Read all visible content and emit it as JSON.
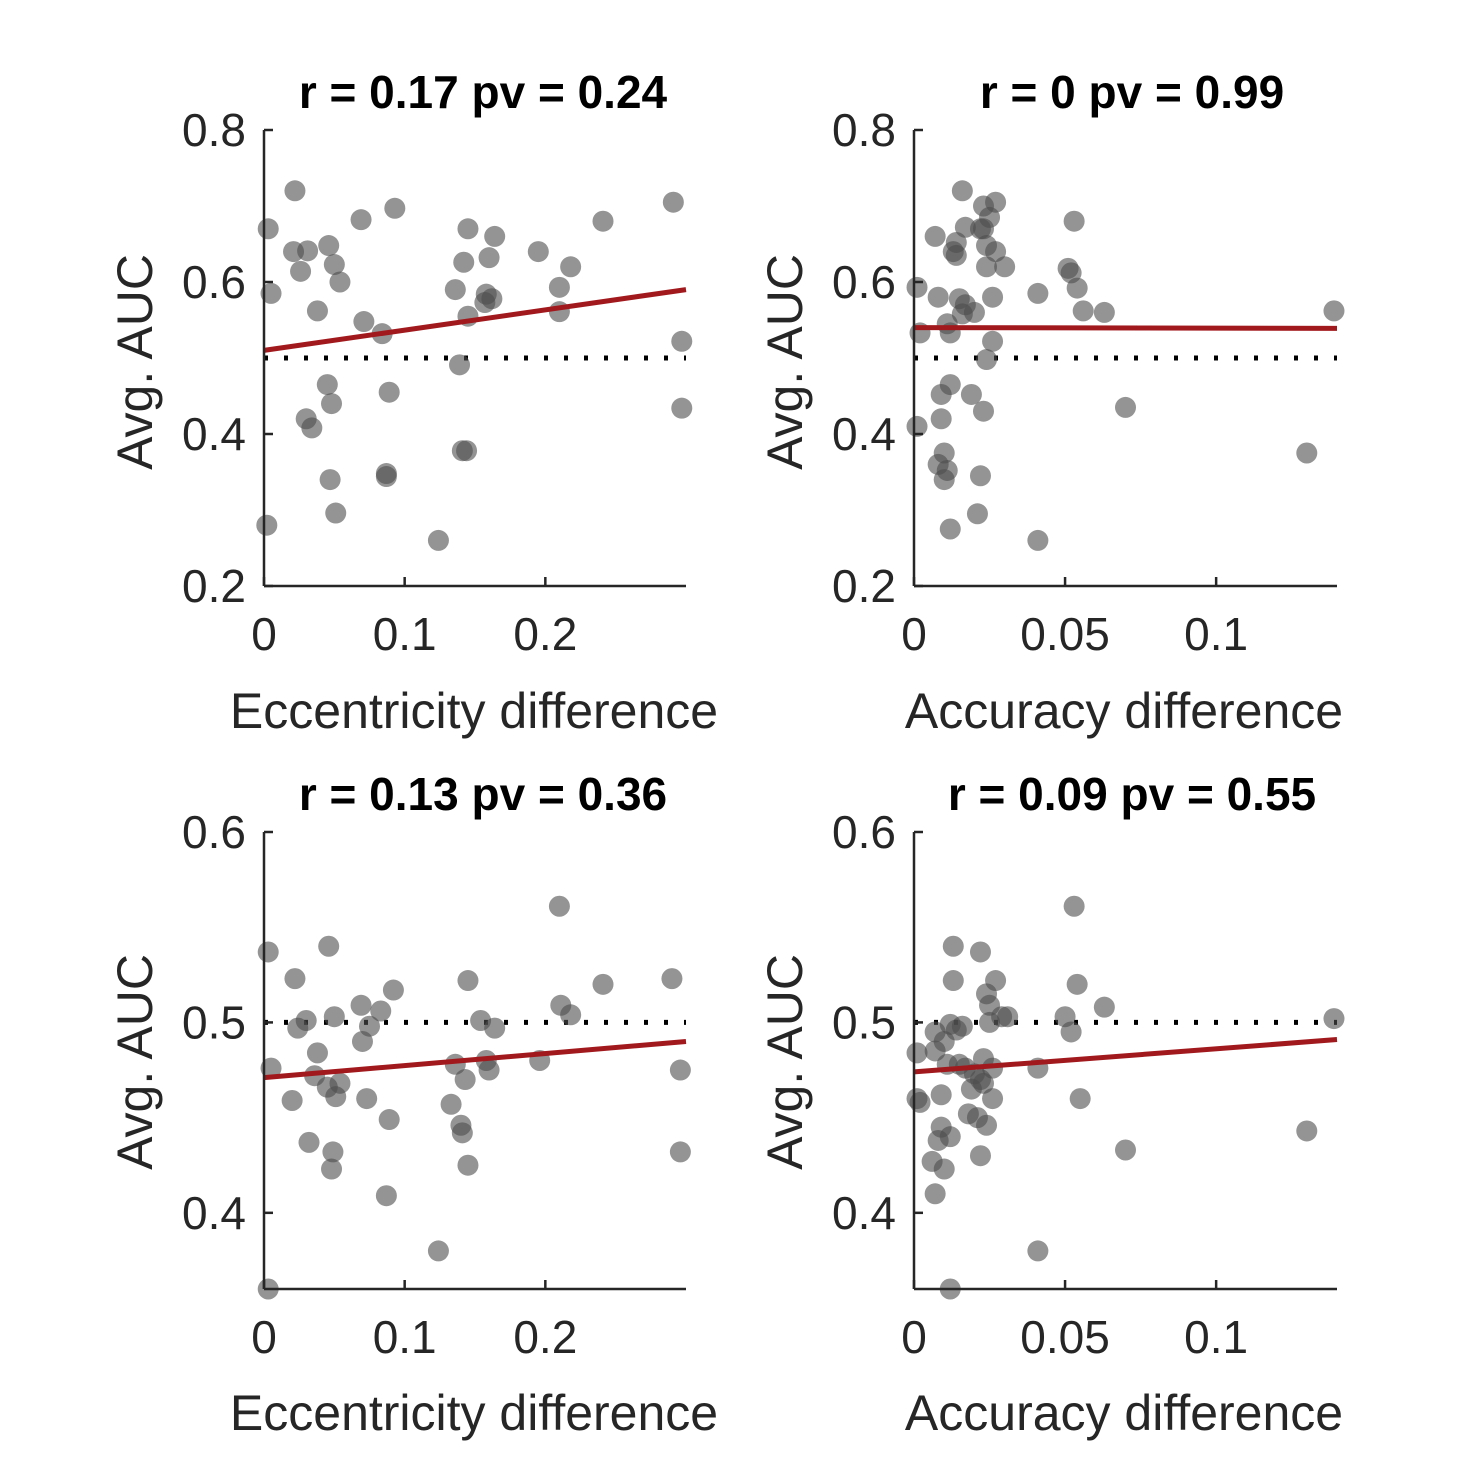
{
  "colors": {
    "points": "#4d4d4d",
    "fit": "#a2191d",
    "axis": "#262626",
    "reference": "#000000"
  },
  "chart_data": [
    {
      "type": "scatter",
      "title": "r = 0.17 pv = 0.24",
      "xlabel": "Eccentricity difference",
      "ylabel": "Avg. AUC",
      "xlim": [
        0,
        0.3
      ],
      "ylim": [
        0.2,
        0.8
      ],
      "xticks": [
        "0",
        "0.1",
        "0.2"
      ],
      "xtick_values": [
        0,
        0.1,
        0.2
      ],
      "yticks": [
        "0.2",
        "0.4",
        "0.6",
        "0.8"
      ],
      "ytick_values": [
        0.2,
        0.4,
        0.6,
        0.8
      ],
      "reference_line": {
        "y": 0.5,
        "style": "dotted"
      },
      "fit_line": {
        "x": [
          0,
          0.3
        ],
        "y": [
          0.51,
          0.59
        ]
      },
      "x": [
        0.003,
        0.005,
        0.002,
        0.022,
        0.021,
        0.026,
        0.031,
        0.038,
        0.03,
        0.034,
        0.046,
        0.05,
        0.054,
        0.045,
        0.048,
        0.047,
        0.051,
        0.069,
        0.071,
        0.084,
        0.093,
        0.089,
        0.087,
        0.087,
        0.124,
        0.136,
        0.142,
        0.145,
        0.144,
        0.141,
        0.145,
        0.139,
        0.16,
        0.164,
        0.162,
        0.158,
        0.157,
        0.195,
        0.21,
        0.21,
        0.218,
        0.241,
        0.291,
        0.297,
        0.297
      ],
      "y": [
        0.67,
        0.585,
        0.28,
        0.72,
        0.64,
        0.614,
        0.641,
        0.562,
        0.42,
        0.408,
        0.648,
        0.623,
        0.6,
        0.465,
        0.44,
        0.34,
        0.296,
        0.682,
        0.548,
        0.532,
        0.697,
        0.455,
        0.348,
        0.344,
        0.26,
        0.59,
        0.626,
        0.67,
        0.378,
        0.378,
        0.555,
        0.491,
        0.632,
        0.66,
        0.578,
        0.584,
        0.573,
        0.64,
        0.593,
        0.561,
        0.62,
        0.68,
        0.705,
        0.522,
        0.434
      ]
    },
    {
      "type": "scatter",
      "title": "r = 0 pv = 0.99",
      "xlabel": "Accuracy difference",
      "ylabel": "Avg. AUC",
      "xlim": [
        0,
        0.14
      ],
      "ylim": [
        0.2,
        0.8
      ],
      "xticks": [
        "0",
        "0.05",
        "0.1"
      ],
      "xtick_values": [
        0,
        0.05,
        0.1
      ],
      "yticks": [
        "0.2",
        "0.4",
        "0.6",
        "0.8"
      ],
      "ytick_values": [
        0.2,
        0.4,
        0.6,
        0.8
      ],
      "reference_line": {
        "y": 0.5,
        "style": "dotted"
      },
      "fit_line": {
        "x": [
          0,
          0.14
        ],
        "y": [
          0.54,
          0.539
        ]
      },
      "x": [
        0.001,
        0.002,
        0.001,
        0.007,
        0.008,
        0.009,
        0.01,
        0.011,
        0.01,
        0.012,
        0.011,
        0.012,
        0.013,
        0.014,
        0.014,
        0.016,
        0.017,
        0.015,
        0.017,
        0.019,
        0.02,
        0.022,
        0.023,
        0.024,
        0.024,
        0.023,
        0.025,
        0.026,
        0.022,
        0.021,
        0.024,
        0.026,
        0.027,
        0.027,
        0.03,
        0.023,
        0.016,
        0.012,
        0.009,
        0.008,
        0.041,
        0.041,
        0.051,
        0.052,
        0.054,
        0.053,
        0.056,
        0.063,
        0.07,
        0.13,
        0.139
      ],
      "y": [
        0.41,
        0.533,
        0.593,
        0.66,
        0.58,
        0.42,
        0.375,
        0.352,
        0.34,
        0.465,
        0.545,
        0.533,
        0.64,
        0.635,
        0.652,
        0.72,
        0.672,
        0.578,
        0.57,
        0.452,
        0.56,
        0.67,
        0.7,
        0.648,
        0.62,
        0.43,
        0.685,
        0.58,
        0.345,
        0.295,
        0.498,
        0.522,
        0.64,
        0.705,
        0.62,
        0.67,
        0.558,
        0.275,
        0.452,
        0.36,
        0.585,
        0.26,
        0.618,
        0.612,
        0.592,
        0.68,
        0.562,
        0.56,
        0.435,
        0.375,
        0.562
      ]
    },
    {
      "type": "scatter",
      "title": "r = 0.13 pv = 0.36",
      "xlabel": "Eccentricity difference",
      "ylabel": "Avg. AUC",
      "xlim": [
        0,
        0.3
      ],
      "ylim": [
        0.36,
        0.6
      ],
      "xticks": [
        "0",
        "0.1",
        "0.2"
      ],
      "xtick_values": [
        0,
        0.1,
        0.2
      ],
      "yticks": [
        "0.4",
        "0.5",
        "0.6"
      ],
      "ytick_values": [
        0.4,
        0.5,
        0.6
      ],
      "reference_line": {
        "y": 0.5,
        "style": "dotted"
      },
      "fit_line": {
        "x": [
          0,
          0.3
        ],
        "y": [
          0.471,
          0.49
        ]
      },
      "x": [
        0.003,
        0.005,
        0.003,
        0.022,
        0.02,
        0.024,
        0.03,
        0.032,
        0.038,
        0.036,
        0.046,
        0.05,
        0.054,
        0.045,
        0.048,
        0.049,
        0.051,
        0.069,
        0.07,
        0.075,
        0.073,
        0.083,
        0.089,
        0.092,
        0.087,
        0.124,
        0.133,
        0.136,
        0.14,
        0.145,
        0.143,
        0.141,
        0.145,
        0.154,
        0.16,
        0.164,
        0.158,
        0.196,
        0.21,
        0.211,
        0.218,
        0.241,
        0.29,
        0.296,
        0.296
      ],
      "y": [
        0.537,
        0.476,
        0.36,
        0.523,
        0.459,
        0.497,
        0.501,
        0.437,
        0.484,
        0.472,
        0.54,
        0.503,
        0.468,
        0.466,
        0.423,
        0.432,
        0.461,
        0.509,
        0.49,
        0.498,
        0.46,
        0.506,
        0.449,
        0.517,
        0.409,
        0.38,
        0.457,
        0.478,
        0.446,
        0.522,
        0.47,
        0.442,
        0.425,
        0.501,
        0.475,
        0.497,
        0.48,
        0.48,
        0.561,
        0.509,
        0.504,
        0.52,
        0.523,
        0.475,
        0.432
      ]
    },
    {
      "type": "scatter",
      "title": "r = 0.09 pv = 0.55",
      "xlabel": "Accuracy difference",
      "ylabel": "Avg. AUC",
      "xlim": [
        0,
        0.14
      ],
      "ylim": [
        0.36,
        0.6
      ],
      "xticks": [
        "0",
        "0.05",
        "0.1"
      ],
      "xtick_values": [
        0,
        0.05,
        0.1
      ],
      "yticks": [
        "0.4",
        "0.5",
        "0.6"
      ],
      "ytick_values": [
        0.4,
        0.5,
        0.6
      ],
      "reference_line": {
        "y": 0.5,
        "style": "dotted"
      },
      "fit_line": {
        "x": [
          0,
          0.14
        ],
        "y": [
          0.474,
          0.491
        ]
      },
      "x": [
        0.001,
        0.001,
        0.002,
        0.007,
        0.007,
        0.008,
        0.006,
        0.007,
        0.009,
        0.01,
        0.01,
        0.011,
        0.012,
        0.012,
        0.013,
        0.013,
        0.014,
        0.015,
        0.016,
        0.017,
        0.018,
        0.019,
        0.021,
        0.022,
        0.022,
        0.023,
        0.023,
        0.024,
        0.024,
        0.025,
        0.025,
        0.026,
        0.026,
        0.027,
        0.029,
        0.022,
        0.02,
        0.031,
        0.041,
        0.041,
        0.05,
        0.052,
        0.053,
        0.054,
        0.055,
        0.063,
        0.07,
        0.13,
        0.139,
        0.012,
        0.009
      ],
      "y": [
        0.484,
        0.46,
        0.458,
        0.495,
        0.485,
        0.438,
        0.427,
        0.41,
        0.462,
        0.49,
        0.423,
        0.478,
        0.499,
        0.36,
        0.54,
        0.522,
        0.496,
        0.478,
        0.498,
        0.476,
        0.452,
        0.465,
        0.45,
        0.537,
        0.47,
        0.481,
        0.468,
        0.515,
        0.446,
        0.5,
        0.509,
        0.46,
        0.476,
        0.522,
        0.503,
        0.43,
        0.473,
        0.503,
        0.476,
        0.38,
        0.503,
        0.495,
        0.561,
        0.52,
        0.46,
        0.508,
        0.433,
        0.443,
        0.502,
        0.44,
        0.445
      ]
    }
  ]
}
